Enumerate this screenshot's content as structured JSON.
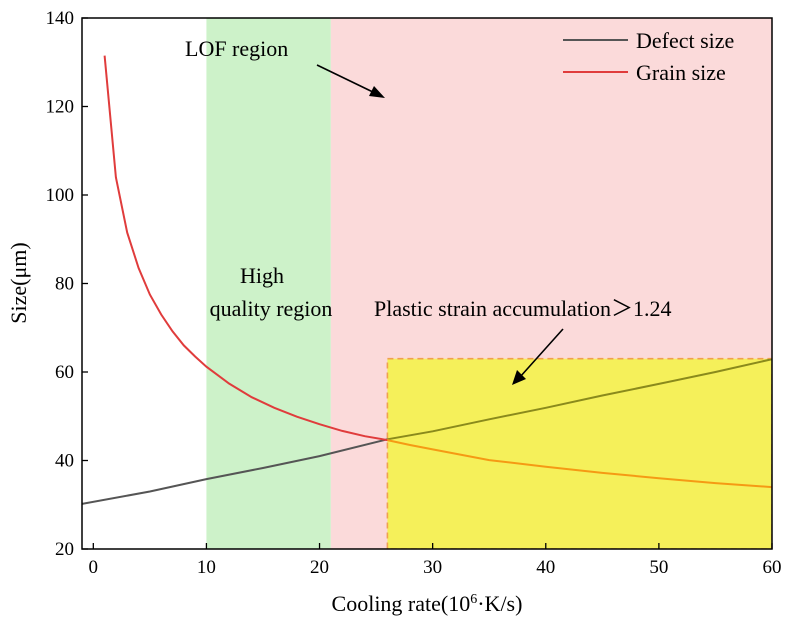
{
  "chart_data": {
    "type": "line",
    "title": "",
    "xlabel_prefix": "Cooling rate(10",
    "xlabel_sup": "6",
    "xlabel_suffix": "·K/s)",
    "ylabel": "Size(μm)",
    "xlim": [
      -1,
      60
    ],
    "ylim": [
      20,
      140
    ],
    "xticks": [
      0,
      10,
      20,
      30,
      40,
      50,
      60
    ],
    "yticks": [
      20,
      40,
      60,
      80,
      100,
      120,
      140
    ],
    "legend": {
      "placement": "top-right",
      "entries": [
        "Defect size",
        "Grain size"
      ]
    },
    "colors": {
      "defect": "#555555",
      "grain": "#e03c3c",
      "grain_overlay": "#f59a14",
      "defect_overlay": "#8a8a1c",
      "high_quality_fill": "#cdf2c9",
      "lof_fill": "#fbdada",
      "plastic_fill": "#f5f05a",
      "plastic_border": "#f0a050"
    },
    "series": [
      {
        "name": "Defect size",
        "x": [
          -1,
          5,
          10,
          15,
          20,
          26,
          30,
          35,
          40,
          45,
          50,
          55,
          60
        ],
        "y": [
          30.2,
          33.0,
          35.8,
          38.3,
          41.0,
          44.8,
          46.6,
          49.3,
          51.9,
          54.7,
          57.3,
          60.0,
          62.9
        ]
      },
      {
        "name": "Grain size",
        "x": [
          1,
          2,
          3,
          4,
          5,
          6,
          7,
          8,
          9,
          10,
          12,
          14,
          16,
          18,
          20,
          22,
          24,
          26,
          28,
          30,
          35,
          40,
          45,
          50,
          55,
          60
        ],
        "y": [
          131.5,
          104,
          91.5,
          83.5,
          77.5,
          73,
          69.2,
          66,
          63.5,
          61.2,
          57.4,
          54.3,
          51.9,
          49.9,
          48.2,
          46.7,
          45.5,
          44.6,
          43.5,
          42.5,
          40.1,
          38.6,
          37.2,
          36.0,
          34.9,
          34.0
        ]
      }
    ],
    "regions": [
      {
        "name": "High quality region",
        "x0": 10,
        "x1": 21,
        "y0": 20,
        "y1": 140
      },
      {
        "name": "LOF region",
        "x0": 21,
        "x1": 60,
        "y0": 20,
        "y1": 140
      },
      {
        "name": "Plastic strain accumulation",
        "x0": 26,
        "x1": 60,
        "y0": 20,
        "y1": 63
      }
    ],
    "annotations": {
      "lof": "LOF region",
      "high_line1": "High",
      "high_line2": "quality region",
      "plastic": "Plastic strain accumulation＞1.24"
    }
  }
}
